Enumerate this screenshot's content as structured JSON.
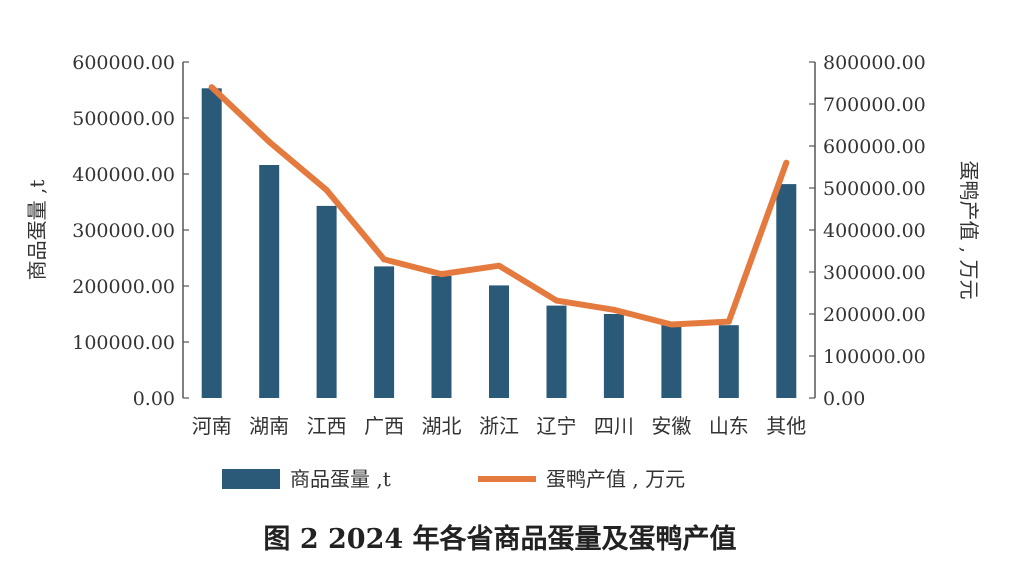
{
  "caption": "图 2  2024 年各省商品蛋量及蛋鸭产值",
  "legend": {
    "bar_label": "商品蛋量 ,t",
    "line_label": "蛋鸭产值 , 万元"
  },
  "colors": {
    "bar": "#2a5a78",
    "line": "#e57a3e",
    "axis": "#555555"
  },
  "chart_data": {
    "type": "bar",
    "categories": [
      "河南",
      "湖南",
      "江西",
      "广西",
      "湖北",
      "浙江",
      "辽宁",
      "四川",
      "安徽",
      "山东",
      "其他"
    ],
    "series": [
      {
        "name": "商品蛋量 ,t",
        "type": "bar",
        "axis": "left",
        "values": [
          553000,
          416000,
          343000,
          235000,
          218000,
          201000,
          165000,
          150000,
          133000,
          130000,
          382000
        ]
      },
      {
        "name": "蛋鸭产值 , 万元",
        "type": "line",
        "axis": "right",
        "values": [
          740000,
          610000,
          495000,
          330000,
          295000,
          315000,
          232000,
          210000,
          175000,
          182000,
          560000
        ]
      }
    ],
    "ylabel_left": "商品蛋量 ,t",
    "ylabel_right": "蛋鸭产值 , 万元",
    "ylim_left": [
      0,
      600000
    ],
    "ylim_right": [
      0,
      800000
    ],
    "yticks_left": [
      "0.00",
      "100000.00",
      "200000.00",
      "300000.00",
      "400000.00",
      "500000.00",
      "600000.00"
    ],
    "yticks_right": [
      "0.00",
      "100000.00",
      "200000.00",
      "300000.00",
      "400000.00",
      "500000.00",
      "600000.00",
      "700000.00",
      "800000.00"
    ],
    "grid": false,
    "legend_position": "bottom"
  }
}
